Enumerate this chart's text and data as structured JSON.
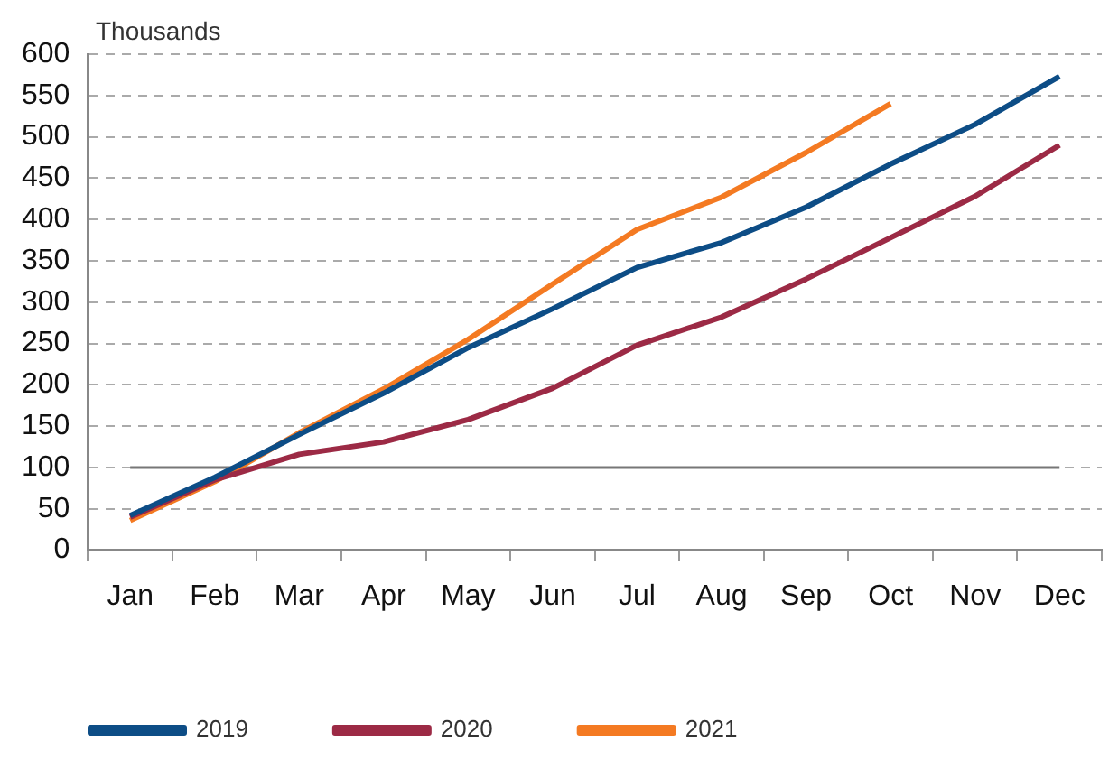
{
  "chart_data": {
    "type": "line",
    "ylabel": "Thousands",
    "categories": [
      "Jan",
      "Feb",
      "Mar",
      "Apr",
      "May",
      "Jun",
      "Jul",
      "Aug",
      "Sep",
      "Oct",
      "Nov",
      "Dec"
    ],
    "series": [
      {
        "name": "2019",
        "color": "#0d4d86",
        "values": [
          42,
          88,
          140,
          190,
          245,
          292,
          342,
          372,
          415,
          467,
          515,
          573
        ]
      },
      {
        "name": "2020",
        "color": "#9c2a45",
        "values": [
          40,
          85,
          116,
          131,
          158,
          196,
          248,
          282,
          328,
          378,
          428,
          490
        ]
      },
      {
        "name": "2021",
        "color": "#f47a22",
        "values": [
          36,
          83,
          142,
          195,
          255,
          322,
          388,
          427,
          481,
          540,
          null,
          null
        ]
      }
    ],
    "ylim": [
      0,
      600
    ],
    "yticks": [
      0,
      50,
      100,
      150,
      200,
      250,
      300,
      350,
      400,
      450,
      500,
      550,
      600
    ],
    "ref_lines": [
      {
        "axis": "y",
        "value": 100,
        "color": "#777777"
      }
    ],
    "grid": "y",
    "legend": "bottom left",
    "marker": "none",
    "line_style": "solid"
  }
}
